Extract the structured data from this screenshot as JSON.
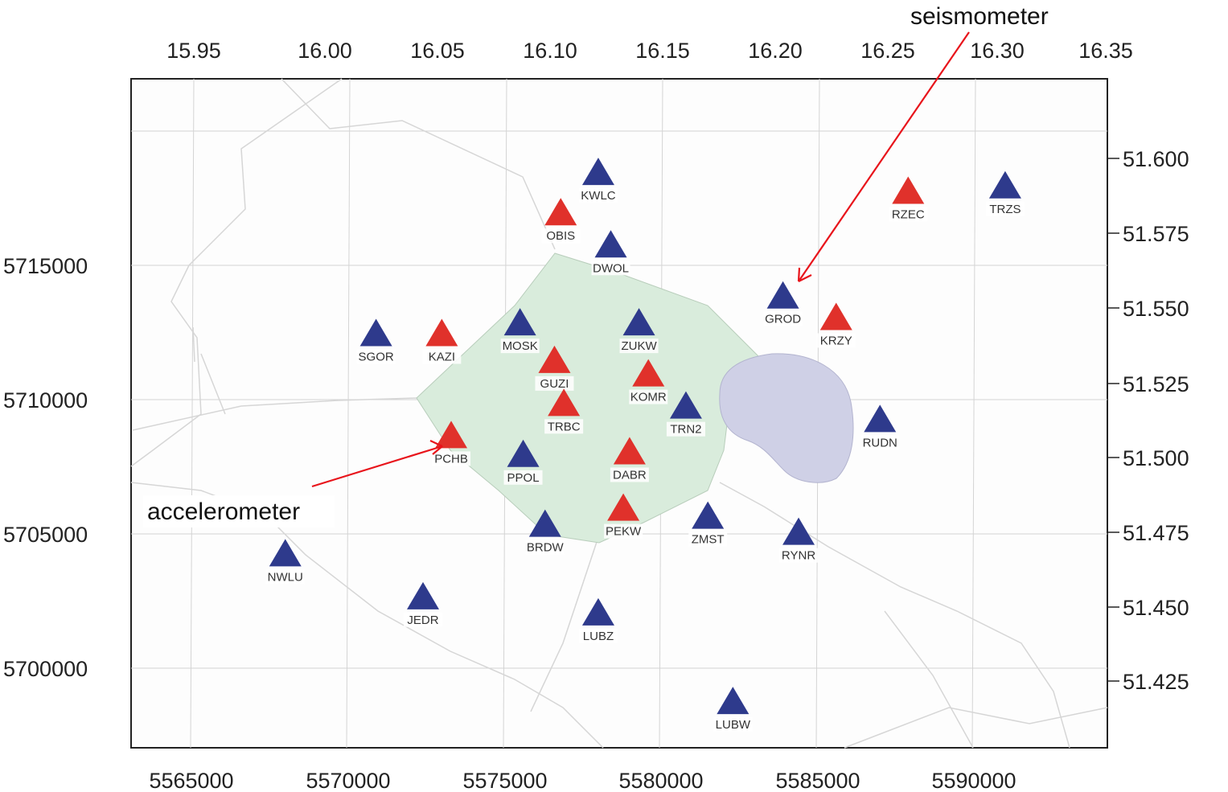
{
  "map": {
    "axis_top_labels": [
      "15.95",
      "16.00",
      "16.05",
      "16.10",
      "16.15",
      "16.20",
      "16.25",
      "16.30",
      "16.35"
    ],
    "axis_bottom_labels": [
      "5565000",
      "5570000",
      "5575000",
      "5580000",
      "5585000",
      "5590000"
    ],
    "axis_left_labels": [
      "5715000",
      "5710000",
      "5705000",
      "5700000"
    ],
    "axis_right_labels": [
      "51.600",
      "51.575",
      "51.550",
      "51.525",
      "51.500",
      "51.475",
      "51.450",
      "51.425"
    ],
    "colors": {
      "seismometer": "#2e3a8c",
      "accelerometer": "#e0312b",
      "mining_area": "#d9ecdc",
      "reservoir": "#cfd0e6",
      "annotation_arrow": "#e8141b"
    },
    "annotations": {
      "seismometer": "seismometer",
      "accelerometer": "accelerometer"
    },
    "stations": [
      {
        "name": "KWLC",
        "type": "seismometer",
        "easting": 5578000,
        "northing": 5718500
      },
      {
        "name": "OBIS",
        "type": "accelerometer",
        "easting": 5576800,
        "northing": 5717000
      },
      {
        "name": "DWOL",
        "type": "seismometer",
        "easting": 5578400,
        "northing": 5715800
      },
      {
        "name": "RZEC",
        "type": "accelerometer",
        "easting": 5587900,
        "northing": 5717800
      },
      {
        "name": "TRZS",
        "type": "seismometer",
        "easting": 5591000,
        "northing": 5718000
      },
      {
        "name": "GROD",
        "type": "seismometer",
        "easting": 5583900,
        "northing": 5713900
      },
      {
        "name": "KRZY",
        "type": "accelerometer",
        "easting": 5585600,
        "northing": 5713100
      },
      {
        "name": "SGOR",
        "type": "seismometer",
        "easting": 5570900,
        "northing": 5712500
      },
      {
        "name": "KAZI",
        "type": "accelerometer",
        "easting": 5573000,
        "northing": 5712500
      },
      {
        "name": "MOSK",
        "type": "seismometer",
        "easting": 5575500,
        "northing": 5712900
      },
      {
        "name": "ZUKW",
        "type": "seismometer",
        "easting": 5579300,
        "northing": 5712900
      },
      {
        "name": "GUZI",
        "type": "accelerometer",
        "easting": 5576600,
        "northing": 5711500
      },
      {
        "name": "KOMR",
        "type": "accelerometer",
        "easting": 5579600,
        "northing": 5711000
      },
      {
        "name": "TRBC",
        "type": "accelerometer",
        "easting": 5576900,
        "northing": 5709900
      },
      {
        "name": "TRN2",
        "type": "seismometer",
        "easting": 5580800,
        "northing": 5709800
      },
      {
        "name": "RUDN",
        "type": "seismometer",
        "easting": 5587000,
        "northing": 5709300
      },
      {
        "name": "PCHB",
        "type": "accelerometer",
        "easting": 5573300,
        "northing": 5708700
      },
      {
        "name": "PPOL",
        "type": "seismometer",
        "easting": 5575600,
        "northing": 5708000
      },
      {
        "name": "DABR",
        "type": "accelerometer",
        "easting": 5579000,
        "northing": 5708100
      },
      {
        "name": "PEKW",
        "type": "accelerometer",
        "easting": 5578800,
        "northing": 5706000
      },
      {
        "name": "BRDW",
        "type": "seismometer",
        "easting": 5576300,
        "northing": 5705400
      },
      {
        "name": "ZMST",
        "type": "seismometer",
        "easting": 5581500,
        "northing": 5705700
      },
      {
        "name": "RYNR",
        "type": "seismometer",
        "easting": 5584400,
        "northing": 5705100
      },
      {
        "name": "NWLU",
        "type": "seismometer",
        "easting": 5568000,
        "northing": 5704300
      },
      {
        "name": "JEDR",
        "type": "seismometer",
        "easting": 5572400,
        "northing": 5702700
      },
      {
        "name": "LUBZ",
        "type": "seismometer",
        "easting": 5578000,
        "northing": 5702100
      },
      {
        "name": "LUBW",
        "type": "seismometer",
        "easting": 5582300,
        "northing": 5698800
      }
    ]
  }
}
